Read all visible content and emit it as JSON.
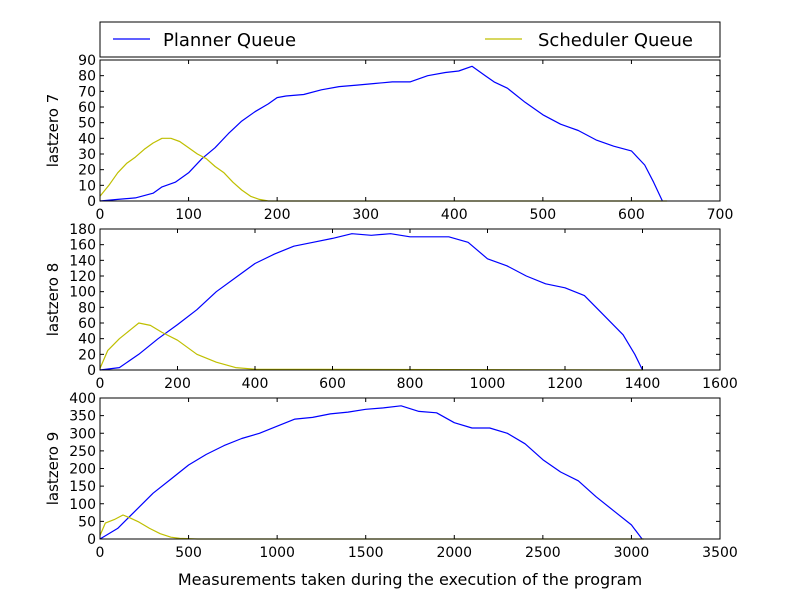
{
  "figure": {
    "xlabel": "Measurements taken during the execution of the program"
  },
  "legend": {
    "placement": "top",
    "entries": [
      {
        "name": "Planner Queue",
        "color": "#0000ff"
      },
      {
        "name": "Scheduler Queue",
        "color": "#bfbf00"
      }
    ]
  },
  "chart_data": [
    {
      "type": "line",
      "ylabel": "lastzero 7",
      "xlim": [
        0,
        700
      ],
      "ylim": [
        0,
        90
      ],
      "xticks": [
        0,
        100,
        200,
        300,
        400,
        500,
        600,
        700
      ],
      "yticks": [
        0,
        10,
        20,
        30,
        40,
        50,
        60,
        70,
        80,
        90
      ],
      "grid": false,
      "series": [
        {
          "name": "Planner Queue",
          "color": "#0000ff",
          "x": [
            0,
            20,
            40,
            60,
            70,
            85,
            100,
            115,
            130,
            145,
            160,
            175,
            190,
            200,
            210,
            230,
            250,
            270,
            290,
            310,
            330,
            350,
            370,
            390,
            405,
            420,
            435,
            445,
            460,
            480,
            500,
            520,
            540,
            560,
            580,
            600,
            615,
            625,
            635
          ],
          "y": [
            0,
            1,
            2,
            5,
            9,
            12,
            18,
            27,
            34,
            43,
            51,
            57,
            62,
            66,
            67,
            68,
            71,
            73,
            74,
            75,
            76,
            76,
            80,
            82,
            83,
            86,
            80,
            76,
            72,
            63,
            55,
            49,
            45,
            39,
            35,
            32,
            23,
            12,
            0
          ]
        },
        {
          "name": "Scheduler Queue",
          "color": "#bfbf00",
          "x": [
            0,
            10,
            20,
            30,
            40,
            50,
            60,
            70,
            80,
            90,
            100,
            110,
            120,
            130,
            140,
            150,
            160,
            170,
            180,
            190,
            250,
            640
          ],
          "y": [
            3,
            10,
            18,
            24,
            28,
            33,
            37,
            40,
            40,
            38,
            34,
            30,
            27,
            22,
            18,
            12,
            7,
            3,
            1,
            0,
            0,
            0
          ]
        }
      ]
    },
    {
      "type": "line",
      "ylabel": "lastzero 8",
      "xlim": [
        0,
        1600
      ],
      "ylim": [
        0,
        180
      ],
      "xticks": [
        0,
        200,
        400,
        600,
        800,
        1000,
        1200,
        1400,
        1600
      ],
      "yticks": [
        0,
        20,
        40,
        60,
        80,
        100,
        120,
        140,
        160,
        180
      ],
      "grid": false,
      "series": [
        {
          "name": "Planner Queue",
          "color": "#0000ff",
          "x": [
            0,
            50,
            100,
            150,
            200,
            250,
            300,
            350,
            400,
            450,
            500,
            550,
            600,
            650,
            700,
            750,
            800,
            850,
            900,
            950,
            1000,
            1050,
            1100,
            1150,
            1200,
            1250,
            1300,
            1350,
            1380,
            1400
          ],
          "y": [
            0,
            3,
            20,
            40,
            58,
            77,
            100,
            118,
            136,
            148,
            158,
            163,
            168,
            174,
            172,
            174,
            170,
            170,
            170,
            163,
            142,
            133,
            120,
            110,
            105,
            95,
            70,
            45,
            20,
            0
          ]
        },
        {
          "name": "Scheduler Queue",
          "color": "#bfbf00",
          "x": [
            0,
            20,
            50,
            80,
            100,
            130,
            160,
            200,
            250,
            300,
            350,
            400,
            1400
          ],
          "y": [
            2,
            25,
            40,
            52,
            60,
            57,
            48,
            38,
            20,
            10,
            3,
            1,
            0
          ]
        }
      ]
    },
    {
      "type": "line",
      "ylabel": "lastzero 9",
      "xlim": [
        0,
        3500
      ],
      "ylim": [
        0,
        400
      ],
      "xticks": [
        0,
        500,
        1000,
        1500,
        2000,
        2500,
        3000,
        3500
      ],
      "yticks": [
        0,
        50,
        100,
        150,
        200,
        250,
        300,
        350,
        400
      ],
      "grid": false,
      "series": [
        {
          "name": "Planner Queue",
          "color": "#0000ff",
          "x": [
            0,
            100,
            200,
            300,
            400,
            500,
            600,
            700,
            800,
            900,
            1000,
            1100,
            1200,
            1300,
            1400,
            1500,
            1600,
            1700,
            1800,
            1900,
            2000,
            2100,
            2200,
            2300,
            2400,
            2500,
            2600,
            2700,
            2800,
            2900,
            3000,
            3060
          ],
          "y": [
            0,
            30,
            80,
            130,
            170,
            210,
            240,
            265,
            285,
            300,
            320,
            340,
            345,
            355,
            360,
            368,
            372,
            378,
            362,
            358,
            330,
            315,
            315,
            300,
            270,
            225,
            190,
            165,
            120,
            80,
            40,
            0
          ]
        },
        {
          "name": "Scheduler Queue",
          "color": "#bfbf00",
          "x": [
            0,
            30,
            80,
            130,
            170,
            220,
            280,
            340,
            400,
            450,
            550,
            3070
          ],
          "y": [
            10,
            45,
            55,
            68,
            60,
            48,
            30,
            15,
            5,
            2,
            0,
            0
          ]
        }
      ]
    }
  ]
}
